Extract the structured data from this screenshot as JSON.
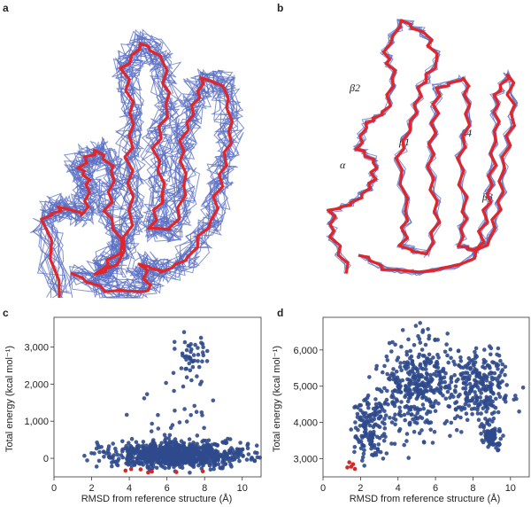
{
  "panels": {
    "a": {
      "letter": "a"
    },
    "b": {
      "letter": "b",
      "annotations": [
        "β2",
        "β1",
        "β4",
        "α",
        "β3"
      ]
    },
    "c": {
      "letter": "c"
    },
    "d": {
      "letter": "d"
    }
  },
  "colors": {
    "ensemble": "#5a6fc4",
    "reference": "#e0262b",
    "dots": "#2f4a8c",
    "best": "#d62728"
  },
  "chart_data": [
    {
      "type": "scatter",
      "panel": "c",
      "xlabel": "RMSD from reference structure (Å)",
      "ylabel": "Total energy (kcal mol⁻¹)",
      "xlim": [
        0,
        11
      ],
      "ylim": [
        -500,
        3800
      ],
      "xticks": [
        "0",
        "2",
        "4",
        "6",
        "8",
        "10"
      ],
      "yticks": [
        "0",
        "1,000",
        "2,000",
        "3,000"
      ],
      "grid": false,
      "clusters": [
        {
          "cx": 7.2,
          "cy": 2800,
          "sx": 0.5,
          "sy": 300,
          "n": 45
        },
        {
          "cx": 6.5,
          "cy": 100,
          "sx": 1.8,
          "sy": 180,
          "n": 900
        },
        {
          "cx": 6.5,
          "cy": 1200,
          "sx": 1.2,
          "sy": 700,
          "n": 30
        }
      ],
      "best": [
        [
          3.8,
          -330
        ],
        [
          4.1,
          -290
        ],
        [
          4.6,
          -300
        ],
        [
          5.0,
          -380
        ],
        [
          5.2,
          -360
        ],
        [
          6.5,
          -370
        ],
        [
          7.9,
          -350
        ]
      ]
    },
    {
      "type": "scatter",
      "panel": "d",
      "xlabel": "RMSD from reference structure (Å)",
      "ylabel": "Total energy (kcal mol⁻¹)",
      "xlim": [
        0,
        11
      ],
      "ylim": [
        2500,
        6900
      ],
      "xticks": [
        "0",
        "2",
        "4",
        "6",
        "8",
        "10"
      ],
      "yticks": [
        "3,000",
        "4,000",
        "5,000",
        "6,000"
      ],
      "grid": false,
      "clusters": [
        {
          "cx": 2.6,
          "cy": 3900,
          "sx": 0.5,
          "sy": 500,
          "n": 160
        },
        {
          "cx": 5.2,
          "cy": 5000,
          "sx": 1.0,
          "sy": 650,
          "n": 380
        },
        {
          "cx": 8.3,
          "cy": 5000,
          "sx": 0.8,
          "sy": 500,
          "n": 260
        },
        {
          "cx": 9.1,
          "cy": 3550,
          "sx": 0.3,
          "sy": 160,
          "n": 70
        }
      ],
      "best": [
        [
          1.4,
          2900
        ],
        [
          1.5,
          2780
        ],
        [
          1.6,
          2850
        ],
        [
          1.7,
          2720
        ],
        [
          1.3,
          2760
        ]
      ]
    }
  ]
}
